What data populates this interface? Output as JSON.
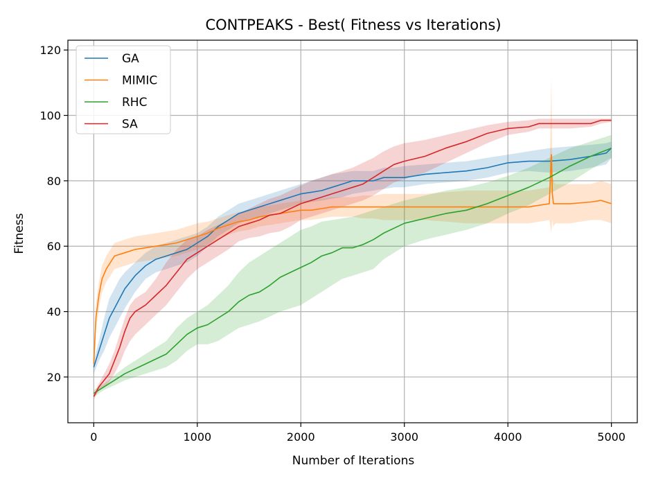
{
  "chart_data": {
    "type": "line",
    "title": "CONTPEAKS - Best( Fitness vs Iterations)",
    "xlabel": "Number of Iterations",
    "ylabel": "Fitness",
    "xlim": [
      -250,
      5250
    ],
    "ylim": [
      6,
      123
    ],
    "xticks": [
      0,
      1000,
      2000,
      3000,
      4000,
      5000
    ],
    "xtick_labels": [
      "0",
      "1000",
      "2000",
      "3000",
      "4000",
      "5000"
    ],
    "yticks": [
      20,
      40,
      60,
      80,
      100,
      120
    ],
    "ytick_labels": [
      "20",
      "40",
      "60",
      "80",
      "100",
      "120"
    ],
    "grid": true,
    "legend_position": "top-left",
    "series": [
      {
        "name": "GA",
        "color": "#1f77b4",
        "x": [
          0,
          50,
          100,
          150,
          200,
          250,
          300,
          400,
          500,
          600,
          700,
          800,
          900,
          1000,
          1100,
          1200,
          1300,
          1400,
          1500,
          1600,
          1700,
          1800,
          1900,
          2000,
          2100,
          2200,
          2300,
          2400,
          2500,
          2600,
          2700,
          2800,
          2900,
          3000,
          3200,
          3400,
          3600,
          3800,
          4000,
          4200,
          4400,
          4600,
          4800,
          4950,
          5000
        ],
        "y": [
          23,
          28,
          33,
          38,
          41,
          44,
          47,
          51,
          54,
          56,
          57,
          58,
          59,
          61,
          63,
          66,
          68,
          70,
          71,
          72,
          73,
          74,
          75,
          76,
          76.5,
          77,
          78,
          79,
          80,
          80,
          80,
          81,
          81,
          81,
          82,
          82.5,
          83,
          84,
          85.5,
          86,
          86,
          86.5,
          87.5,
          88.5,
          90
        ],
        "upper": [
          25,
          31,
          38,
          44,
          47,
          50,
          52,
          55,
          58,
          60,
          61,
          62,
          63,
          64,
          66,
          69,
          71,
          73,
          74,
          75,
          76,
          77,
          78,
          79,
          80,
          81,
          82,
          82.5,
          83,
          83,
          83,
          84,
          84,
          84.5,
          85,
          85.5,
          86,
          87,
          88,
          89,
          90,
          90.5,
          91,
          91.5,
          92
        ],
        "lower": [
          21,
          25,
          28,
          32,
          35,
          38,
          41,
          46,
          50,
          52,
          53,
          54,
          55,
          57,
          60,
          63,
          65,
          67,
          68,
          69,
          70,
          71,
          72,
          73,
          73.5,
          74,
          74.5,
          75,
          76,
          76.5,
          77,
          77.5,
          78,
          78,
          79,
          79.5,
          80,
          81,
          82.5,
          83,
          82.5,
          83,
          84,
          85,
          87
        ]
      },
      {
        "name": "MIMIC",
        "color": "#ff7f0e",
        "x": [
          0,
          20,
          50,
          80,
          120,
          160,
          200,
          300,
          400,
          500,
          600,
          700,
          800,
          900,
          1000,
          1100,
          1200,
          1300,
          1400,
          1500,
          1600,
          1700,
          1800,
          1900,
          2000,
          2100,
          2200,
          2300,
          2400,
          2500,
          2600,
          2700,
          2800,
          2900,
          3000,
          3200,
          3400,
          3600,
          3800,
          4000,
          4200,
          4400,
          4420,
          4430,
          4440,
          4460,
          4600,
          4800,
          4900,
          5000
        ],
        "y": [
          24,
          38,
          45,
          50,
          53,
          55,
          57,
          58,
          59,
          59.5,
          60,
          60.5,
          61,
          62,
          63,
          64,
          65.5,
          66.5,
          67.5,
          68,
          69,
          69.5,
          70,
          70.5,
          71,
          71,
          71.5,
          72,
          72,
          72,
          72,
          72,
          72,
          72,
          72,
          72,
          72,
          72,
          72,
          72,
          72,
          73,
          88,
          76,
          73,
          73,
          73,
          73.5,
          74,
          73
        ],
        "upper": [
          26,
          42,
          49,
          54,
          57,
          59,
          61,
          62,
          63,
          63.5,
          64,
          64.5,
          65,
          66,
          67,
          67.5,
          68.5,
          69.5,
          70.5,
          71,
          72,
          72.5,
          73,
          73.5,
          74,
          74,
          74.5,
          75,
          75,
          75,
          75.5,
          75.5,
          76,
          76,
          76,
          76,
          76.5,
          77,
          77,
          77,
          77,
          78,
          112,
          84,
          80,
          79,
          79,
          79,
          80,
          79
        ],
        "lower": [
          22,
          34,
          41,
          46,
          49,
          51,
          53,
          54,
          55,
          55.5,
          56,
          56.5,
          57,
          58,
          59,
          60.5,
          62,
          63.5,
          64.5,
          65,
          66,
          66.5,
          67,
          67.5,
          68,
          68,
          68.5,
          69,
          69,
          69,
          68.5,
          68.5,
          68,
          68,
          68,
          68,
          67.5,
          67,
          67,
          67,
          67,
          68,
          64,
          68,
          66,
          67,
          67,
          68,
          68,
          67
        ]
      },
      {
        "name": "RHC",
        "color": "#2ca02c",
        "x": [
          0,
          100,
          200,
          300,
          400,
          500,
          600,
          700,
          800,
          900,
          1000,
          1100,
          1200,
          1300,
          1400,
          1500,
          1600,
          1700,
          1800,
          1900,
          2000,
          2100,
          2200,
          2300,
          2400,
          2500,
          2600,
          2700,
          2800,
          2900,
          3000,
          3200,
          3400,
          3600,
          3800,
          4000,
          4200,
          4400,
          4600,
          4800,
          5000
        ],
        "y": [
          15,
          17,
          19,
          21,
          22.5,
          24,
          25.5,
          27,
          30,
          33,
          35,
          36,
          38,
          40,
          43,
          45,
          46,
          48,
          50.5,
          52,
          53.5,
          55,
          57,
          58,
          59.5,
          59.5,
          60.5,
          62,
          64,
          65.5,
          67,
          68.5,
          70,
          71,
          73,
          75.5,
          78,
          81,
          84.5,
          87.5,
          90
        ],
        "upper": [
          16,
          18,
          20.5,
          23,
          25,
          27,
          29,
          31,
          35,
          38,
          40,
          42,
          45,
          48,
          52,
          55,
          57,
          59,
          61,
          63,
          65,
          66,
          67.5,
          68,
          68.5,
          69,
          70,
          71,
          72,
          73,
          74,
          75.5,
          77,
          78,
          79.5,
          81.5,
          84,
          87,
          90,
          92,
          94
        ],
        "lower": [
          14,
          16,
          17.5,
          19,
          20,
          21,
          22,
          23,
          25,
          28,
          30,
          30,
          31,
          33,
          35,
          36,
          37,
          38.5,
          40,
          41,
          42,
          44,
          46,
          48,
          50,
          51,
          52,
          53,
          56,
          58,
          60,
          62,
          63.5,
          65,
          67,
          70,
          72.5,
          76,
          79.5,
          83.5,
          87
        ]
      },
      {
        "name": "SA",
        "color": "#d62728",
        "x": [
          0,
          50,
          100,
          150,
          200,
          250,
          300,
          350,
          400,
          500,
          600,
          700,
          800,
          900,
          1000,
          1100,
          1200,
          1300,
          1400,
          1500,
          1600,
          1700,
          1800,
          1900,
          2000,
          2100,
          2200,
          2300,
          2400,
          2500,
          2600,
          2700,
          2800,
          2900,
          3000,
          3200,
          3400,
          3600,
          3800,
          4000,
          4200,
          4300,
          4400,
          4600,
          4800,
          4900,
          5000
        ],
        "y": [
          14,
          17,
          19,
          21,
          25,
          29,
          34,
          38,
          40,
          42,
          45,
          48,
          52,
          56,
          58,
          60,
          62,
          64,
          66,
          67,
          68,
          69.5,
          70,
          71.5,
          73,
          74,
          75,
          76,
          77,
          78,
          79,
          81,
          83,
          85,
          86,
          87.5,
          90,
          92,
          94.5,
          96,
          96.5,
          97.5,
          97.5,
          97.5,
          97.5,
          98.5,
          98.5
        ],
        "upper": [
          15,
          18,
          21,
          24,
          28,
          33,
          38,
          42,
          44,
          46,
          50,
          55,
          59,
          62,
          63,
          65,
          66.5,
          68,
          70,
          71.5,
          73,
          74.5,
          75.5,
          77,
          78.5,
          80,
          81,
          82,
          83,
          84,
          85.5,
          87,
          89,
          90.5,
          91.5,
          92.5,
          94,
          95.5,
          97,
          98,
          98.5,
          99,
          99,
          99,
          99,
          99,
          99
        ],
        "lower": [
          13,
          16,
          17,
          18.5,
          21,
          24,
          28,
          31,
          33,
          36,
          39,
          42,
          46,
          50,
          53,
          55,
          57,
          59,
          61.5,
          62.5,
          63,
          64,
          64.5,
          66,
          68,
          69,
          70,
          71,
          72,
          73,
          74,
          75.5,
          77.5,
          79.5,
          80.5,
          82.5,
          85.5,
          88.5,
          91.5,
          94,
          95,
          96,
          96,
          96,
          96.5,
          97.5,
          98
        ]
      }
    ]
  }
}
